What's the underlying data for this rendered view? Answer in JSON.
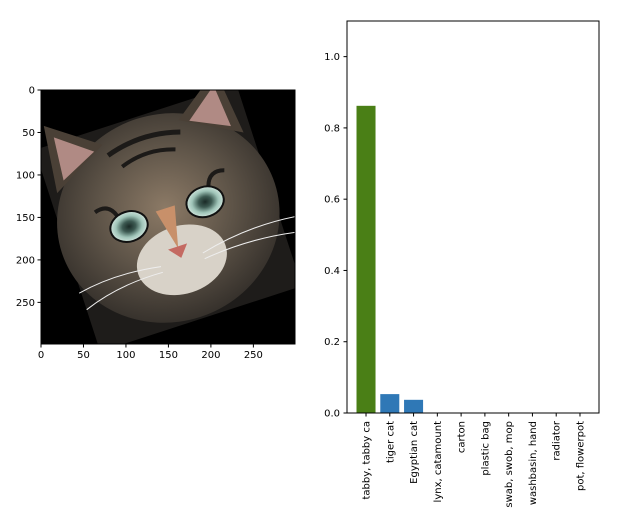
{
  "image_panel": {
    "x_ticks": [
      "0",
      "50",
      "100",
      "150",
      "200",
      "250"
    ],
    "y_ticks": [
      "0",
      "50",
      "100",
      "150",
      "200",
      "250"
    ],
    "x_tick_values": [
      0,
      50,
      100,
      150,
      200,
      250
    ],
    "y_tick_values": [
      0,
      50,
      100,
      150,
      200,
      250
    ],
    "extent": [
      0,
      299
    ]
  },
  "chart_data": {
    "type": "bar",
    "categories": [
      "tabby, tabby ca",
      "tiger cat",
      "Egyptian cat",
      "lynx, catamount",
      "carton",
      "plastic bag",
      "swab, swob, mop",
      "washbasin, hand",
      "radiator",
      "pot, flowerpot"
    ],
    "values": [
      0.862,
      0.053,
      0.037,
      0.001,
      0.0005,
      0.0004,
      0.0003,
      0.0003,
      0.0002,
      0.0002
    ],
    "bar_colors": [
      "#4a7f16",
      "#2f78b6",
      "#2f78b6",
      "#2f78b6",
      "#2f78b6",
      "#2f78b6",
      "#2f78b6",
      "#2f78b6",
      "#2f78b6",
      "#2f78b6"
    ],
    "ylim": [
      0,
      1.1
    ],
    "yticks": [
      0.0,
      0.2,
      0.4,
      0.6,
      0.8,
      1.0
    ],
    "ytick_labels": [
      "0.0",
      "0.2",
      "0.4",
      "0.6",
      "0.8",
      "1.0"
    ],
    "title": "",
    "xlabel": "",
    "ylabel": "",
    "grid": false
  }
}
